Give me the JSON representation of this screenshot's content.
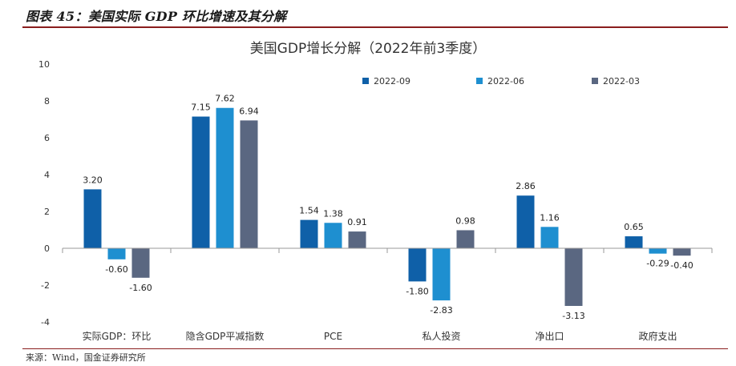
{
  "caption": "图表 45：美国实际 GDP 环比增速及其分解",
  "source": "来源：Wind，国金证券研究所",
  "chart_data": {
    "type": "bar",
    "title": "美国GDP增长分解（2022年前3季度）",
    "categories": [
      "实际GDP：环比",
      "隐含GDP平减指数",
      "PCE",
      "私人投资",
      "净出口",
      "政府支出"
    ],
    "series": [
      {
        "name": "2022-09",
        "color": "#0f60a8",
        "values": [
          3.2,
          7.15,
          1.54,
          -1.8,
          2.86,
          0.65
        ]
      },
      {
        "name": "2022-06",
        "color": "#1e8fd0",
        "values": [
          -0.6,
          7.62,
          1.38,
          -2.83,
          1.16,
          -0.29
        ]
      },
      {
        "name": "2022-03",
        "color": "#5a6781",
        "values": [
          -1.6,
          6.94,
          0.91,
          0.98,
          -3.13,
          -0.4
        ]
      }
    ],
    "data_labels": [
      [
        "3.20",
        "7.15",
        "1.54",
        "-1.80",
        "2.86",
        "0.65"
      ],
      [
        "-0.60",
        "7.62",
        "1.38",
        "-2.83",
        "1.16",
        "-0.29"
      ],
      [
        "-1.60",
        "6.94",
        "0.91",
        "0.98",
        "-3.13",
        "-0.40"
      ]
    ],
    "ylim": [
      -4,
      10
    ],
    "yticks": [
      "-4",
      "-2",
      "0",
      "2",
      "4",
      "6",
      "8",
      "10"
    ],
    "xlabel": "",
    "ylabel": "",
    "legend_position": "top",
    "grid": false
  }
}
